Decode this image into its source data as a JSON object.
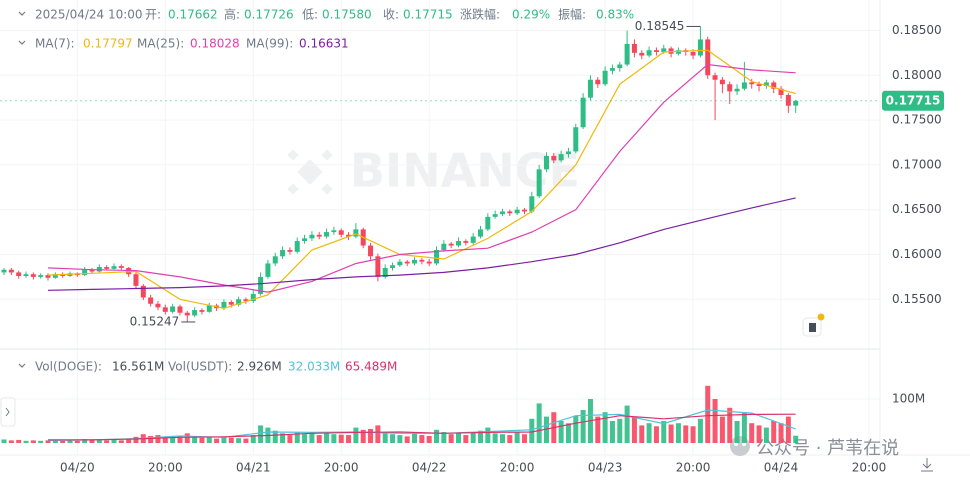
{
  "chart_data": {
    "type": "candlestick",
    "header": [
      "2025/04/24 10:00",
      "开:",
      "0.17662",
      "高:",
      "0.17726",
      "低:",
      "0.17580",
      "收:",
      "0.17715",
      "涨跌幅:",
      "0.29%",
      "振幅:",
      "0.83%"
    ],
    "up_color": "#2ebd85",
    "down_color": "#f6465d",
    "xlim": [
      -0.55,
      119.5
    ],
    "xticks": [
      {
        "value": 10,
        "label": "04/20"
      },
      {
        "value": 22,
        "label": "20:00"
      },
      {
        "value": 34,
        "label": "04/21"
      },
      {
        "value": 46,
        "label": "20:00"
      },
      {
        "value": 58,
        "label": "04/22"
      },
      {
        "value": 70,
        "label": "20:00"
      },
      {
        "value": 82,
        "label": "04/23"
      },
      {
        "value": 94,
        "label": "20:00"
      },
      {
        "value": 106,
        "label": "04/24"
      },
      {
        "value": 118,
        "label": "20:00"
      }
    ],
    "ylim": [
      0.1499,
      0.1884
    ],
    "yticks": [
      {
        "value": 0.155,
        "label": "0.15500"
      },
      {
        "value": 0.16,
        "label": "0.16000"
      },
      {
        "value": 0.165,
        "label": "0.16500"
      },
      {
        "value": 0.17,
        "label": "0.17000"
      },
      {
        "value": 0.175,
        "label": "0.17500"
      },
      {
        "value": 0.18,
        "label": "0.18000"
      },
      {
        "value": 0.185,
        "label": "0.18500"
      }
    ],
    "grid": true,
    "ohlc": [
      [
        0.158,
        0.1585,
        0.1577,
        0.1583
      ],
      [
        0.1583,
        0.1585,
        0.1577,
        0.158
      ],
      [
        0.158,
        0.1582,
        0.1573,
        0.1576
      ],
      [
        0.1576,
        0.1581,
        0.1574,
        0.1578
      ],
      [
        0.1578,
        0.158,
        0.1572,
        0.1575
      ],
      [
        0.1575,
        0.1579,
        0.1573,
        0.1577
      ],
      [
        0.1577,
        0.1579,
        0.1571,
        0.1574
      ],
      [
        0.1574,
        0.158,
        0.1573,
        0.1578
      ],
      [
        0.1578,
        0.158,
        0.1574,
        0.1576
      ],
      [
        0.1576,
        0.1581,
        0.1575,
        0.1579
      ],
      [
        0.1579,
        0.158,
        0.1575,
        0.1577
      ],
      [
        0.1577,
        0.1586,
        0.1576,
        0.1583
      ],
      [
        0.1583,
        0.1585,
        0.1579,
        0.1581
      ],
      [
        0.1581,
        0.1589,
        0.158,
        0.1586
      ],
      [
        0.1586,
        0.1588,
        0.1582,
        0.1584
      ],
      [
        0.1584,
        0.159,
        0.1583,
        0.1587
      ],
      [
        0.1587,
        0.1589,
        0.1583,
        0.1585
      ],
      [
        0.1585,
        0.1586,
        0.1575,
        0.1578
      ],
      [
        0.1578,
        0.158,
        0.1562,
        0.1565
      ],
      [
        0.1565,
        0.1567,
        0.1549,
        0.1552
      ],
      [
        0.1552,
        0.1555,
        0.1542,
        0.1545
      ],
      [
        0.1545,
        0.1548,
        0.1538,
        0.1541
      ],
      [
        0.1541,
        0.1544,
        0.1533,
        0.1536
      ],
      [
        0.1536,
        0.1545,
        0.1534,
        0.1542
      ],
      [
        0.1542,
        0.1544,
        0.1532,
        0.1535
      ],
      [
        0.1535,
        0.1537,
        0.15247,
        0.1532
      ],
      [
        0.1532,
        0.1541,
        0.153,
        0.1538
      ],
      [
        0.1538,
        0.154,
        0.1533,
        0.1536
      ],
      [
        0.1536,
        0.1546,
        0.1535,
        0.1543
      ],
      [
        0.1543,
        0.1545,
        0.1537,
        0.154
      ],
      [
        0.154,
        0.155,
        0.1538,
        0.1547
      ],
      [
        0.1547,
        0.1549,
        0.1541,
        0.1544
      ],
      [
        0.1544,
        0.1553,
        0.1542,
        0.155
      ],
      [
        0.155,
        0.1552,
        0.1545,
        0.1548
      ],
      [
        0.1548,
        0.156,
        0.1546,
        0.1556
      ],
      [
        0.1556,
        0.158,
        0.1554,
        0.1575
      ],
      [
        0.1575,
        0.1594,
        0.1573,
        0.159
      ],
      [
        0.159,
        0.1602,
        0.1587,
        0.1598
      ],
      [
        0.1598,
        0.1609,
        0.1595,
        0.1605
      ],
      [
        0.1605,
        0.1608,
        0.16,
        0.1603
      ],
      [
        0.1603,
        0.1619,
        0.1601,
        0.1615
      ],
      [
        0.1615,
        0.1622,
        0.1612,
        0.1618
      ],
      [
        0.1618,
        0.1626,
        0.1615,
        0.1622
      ],
      [
        0.1622,
        0.1625,
        0.1617,
        0.162
      ],
      [
        0.162,
        0.1629,
        0.1618,
        0.1625
      ],
      [
        0.1625,
        0.1631,
        0.1622,
        0.1627
      ],
      [
        0.1627,
        0.1629,
        0.1619,
        0.1622
      ],
      [
        0.1622,
        0.1625,
        0.1616,
        0.162
      ],
      [
        0.162,
        0.1635,
        0.1618,
        0.1628
      ],
      [
        0.1628,
        0.163,
        0.1607,
        0.161
      ],
      [
        0.161,
        0.1613,
        0.1594,
        0.1598
      ],
      [
        0.1598,
        0.1601,
        0.157,
        0.1575
      ],
      [
        0.1575,
        0.1589,
        0.1573,
        0.1585
      ],
      [
        0.1585,
        0.1591,
        0.1582,
        0.1588
      ],
      [
        0.1588,
        0.1595,
        0.1586,
        0.1592
      ],
      [
        0.1592,
        0.1594,
        0.1587,
        0.159
      ],
      [
        0.159,
        0.1597,
        0.1588,
        0.1594
      ],
      [
        0.1594,
        0.1596,
        0.1589,
        0.1592
      ],
      [
        0.1592,
        0.1595,
        0.1587,
        0.159
      ],
      [
        0.159,
        0.1609,
        0.1588,
        0.1605
      ],
      [
        0.1605,
        0.1616,
        0.1603,
        0.1612
      ],
      [
        0.1612,
        0.1614,
        0.1607,
        0.161
      ],
      [
        0.161,
        0.1619,
        0.1608,
        0.1615
      ],
      [
        0.1615,
        0.1617,
        0.161,
        0.1613
      ],
      [
        0.1613,
        0.1624,
        0.1611,
        0.162
      ],
      [
        0.162,
        0.1632,
        0.1618,
        0.1628
      ],
      [
        0.1628,
        0.1646,
        0.1626,
        0.1642
      ],
      [
        0.1642,
        0.1649,
        0.164,
        0.1645
      ],
      [
        0.1645,
        0.1651,
        0.1643,
        0.1648
      ],
      [
        0.1648,
        0.165,
        0.1643,
        0.1646
      ],
      [
        0.1646,
        0.1653,
        0.1644,
        0.165
      ],
      [
        0.165,
        0.1652,
        0.1645,
        0.1648
      ],
      [
        0.1648,
        0.167,
        0.1646,
        0.1665
      ],
      [
        0.1665,
        0.17,
        0.1663,
        0.1695
      ],
      [
        0.1695,
        0.1714,
        0.1692,
        0.171
      ],
      [
        0.171,
        0.1713,
        0.1702,
        0.1705
      ],
      [
        0.1705,
        0.1716,
        0.1703,
        0.1712
      ],
      [
        0.1712,
        0.1719,
        0.1708,
        0.1715
      ],
      [
        0.1715,
        0.1746,
        0.1713,
        0.1742
      ],
      [
        0.1742,
        0.178,
        0.174,
        0.1775
      ],
      [
        0.1775,
        0.18,
        0.1772,
        0.1795
      ],
      [
        0.1795,
        0.1798,
        0.1786,
        0.179
      ],
      [
        0.179,
        0.181,
        0.1788,
        0.1805
      ],
      [
        0.1805,
        0.1812,
        0.1801,
        0.1808
      ],
      [
        0.1808,
        0.1815,
        0.1804,
        0.1812
      ],
      [
        0.1812,
        0.185,
        0.181,
        0.1835
      ],
      [
        0.1835,
        0.184,
        0.182,
        0.1825
      ],
      [
        0.1825,
        0.1828,
        0.1818,
        0.1822
      ],
      [
        0.1822,
        0.1832,
        0.182,
        0.1828
      ],
      [
        0.1828,
        0.1831,
        0.1822,
        0.1826
      ],
      [
        0.1826,
        0.1834,
        0.1824,
        0.183
      ],
      [
        0.183,
        0.1832,
        0.182,
        0.1824
      ],
      [
        0.1824,
        0.1831,
        0.1822,
        0.1828
      ],
      [
        0.1828,
        0.183,
        0.1822,
        0.1826
      ],
      [
        0.1826,
        0.1829,
        0.1818,
        0.1822
      ],
      [
        0.1822,
        0.18545,
        0.182,
        0.184
      ],
      [
        0.184,
        0.1843,
        0.1796,
        0.18
      ],
      [
        0.18,
        0.1803,
        0.175,
        0.1795
      ],
      [
        0.1795,
        0.1798,
        0.178,
        0.179
      ],
      [
        0.179,
        0.1793,
        0.1768,
        0.1782
      ],
      [
        0.1782,
        0.179,
        0.1778,
        0.1785
      ],
      [
        0.1785,
        0.1815,
        0.1783,
        0.1792
      ],
      [
        0.1792,
        0.1796,
        0.1785,
        0.179
      ],
      [
        0.179,
        0.1793,
        0.1782,
        0.1788
      ],
      [
        0.1788,
        0.1795,
        0.1785,
        0.1792
      ],
      [
        0.1792,
        0.1794,
        0.178,
        0.1785
      ],
      [
        0.1785,
        0.1788,
        0.1774,
        0.1778
      ],
      [
        0.1778,
        0.178,
        0.1758,
        0.1766
      ],
      [
        0.17662,
        0.17726,
        0.1758,
        0.17715
      ]
    ],
    "high_label": "0.18545",
    "low_label": "0.15247",
    "price_tag": "0.17715",
    "ma": [
      {
        "name": "MA(7):",
        "last": "0.17797",
        "color": "#f0b90b",
        "x": [
          6,
          12,
          18,
          24,
          30,
          36,
          42,
          48,
          54,
          60,
          66,
          72,
          78,
          84,
          90,
          96,
          102,
          108
        ],
        "values": [
          0.1577,
          0.1579,
          0.1581,
          0.155,
          0.154,
          0.1555,
          0.1605,
          0.1623,
          0.16,
          0.1595,
          0.1618,
          0.1648,
          0.17,
          0.179,
          0.1826,
          0.1828,
          0.1793,
          0.17797
        ]
      },
      {
        "name": "MA(25):",
        "last": "0.18028",
        "color": "#e040b0",
        "x": [
          6,
          12,
          18,
          24,
          30,
          36,
          42,
          48,
          54,
          60,
          66,
          72,
          78,
          84,
          90,
          96,
          102,
          108
        ],
        "values": [
          0.1585,
          0.1583,
          0.1582,
          0.1575,
          0.1566,
          0.1558,
          0.157,
          0.159,
          0.16,
          0.1604,
          0.1607,
          0.1625,
          0.165,
          0.1715,
          0.177,
          0.1812,
          0.1806,
          0.18028
        ]
      },
      {
        "name": "MA(99):",
        "last": "0.16631",
        "color": "#7b1fa2",
        "x": [
          6,
          12,
          18,
          24,
          30,
          36,
          42,
          48,
          54,
          60,
          66,
          72,
          78,
          84,
          90,
          96,
          102,
          108
        ],
        "values": [
          0.156,
          0.1561,
          0.1562,
          0.1563,
          0.1565,
          0.1568,
          0.1572,
          0.1575,
          0.1577,
          0.158,
          0.1585,
          0.1592,
          0.16,
          0.1613,
          0.1628,
          0.164,
          0.1652,
          0.16631
        ]
      }
    ],
    "vol_legend": [
      "Vol(DOGE):",
      "16.561M",
      "Vol(USDT):",
      "2.926M"
    ],
    "vlim": [
      0,
      200
    ],
    "vticks": [
      {
        "value": 100,
        "label": "100M"
      }
    ],
    "volume": [
      8,
      6,
      7,
      5,
      6,
      5,
      6,
      7,
      5,
      6,
      5,
      9,
      7,
      8,
      6,
      7,
      6,
      10,
      14,
      20,
      16,
      18,
      12,
      14,
      16,
      22,
      15,
      12,
      13,
      10,
      14,
      12,
      11,
      10,
      18,
      40,
      35,
      28,
      22,
      18,
      25,
      20,
      24,
      18,
      22,
      20,
      19,
      18,
      35,
      30,
      32,
      40,
      25,
      20,
      18,
      15,
      22,
      18,
      16,
      30,
      25,
      20,
      22,
      18,
      24,
      28,
      35,
      22,
      20,
      18,
      24,
      20,
      55,
      90,
      60,
      70,
      50,
      45,
      62,
      75,
      100,
      60,
      70,
      50,
      55,
      85,
      60,
      40,
      45,
      38,
      50,
      42,
      45,
      40,
      38,
      55,
      130,
      100,
      60,
      80,
      50,
      70,
      45,
      40,
      35,
      50,
      45,
      60,
      16.561
    ],
    "vol_ma": [
      {
        "last": "32.033M",
        "color": "#4fc3d9",
        "x": [
          6,
          12,
          18,
          24,
          30,
          36,
          42,
          48,
          54,
          60,
          66,
          72,
          78,
          84,
          90,
          96,
          102,
          108
        ],
        "values": [
          6,
          7,
          10,
          16,
          13,
          25,
          24,
          25,
          22,
          22,
          26,
          30,
          62,
          65,
          44,
          75,
          68,
          32.033
        ]
      },
      {
        "last": "65.489M",
        "color": "#d6336c",
        "x": [
          6,
          12,
          18,
          24,
          30,
          36,
          42,
          48,
          54,
          60,
          66,
          72,
          78,
          84,
          90,
          96,
          102,
          108
        ],
        "values": [
          7,
          7,
          9,
          13,
          14,
          17,
          22,
          24,
          25,
          22,
          24,
          25,
          45,
          62,
          55,
          62,
          65,
          65.489
        ]
      }
    ],
    "watermark": "BINANCE",
    "credit": "公众号 · 芦苇在说"
  }
}
